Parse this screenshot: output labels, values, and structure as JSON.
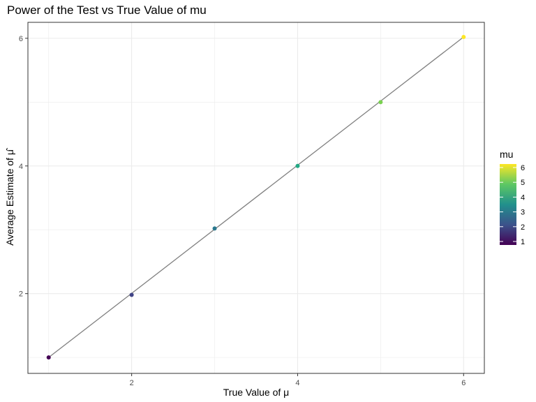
{
  "chart_data": {
    "type": "scatter",
    "title": "Power of the Test vs True Value of mu",
    "xlabel": "True Value of μ",
    "ylabel": "Average Estimate of  μ̂",
    "xlim": [
      0.75,
      6.25
    ],
    "ylim": [
      0.75,
      6.25
    ],
    "x_ticks": [
      2,
      4,
      6
    ],
    "y_ticks": [
      2,
      4,
      6
    ],
    "grid": true,
    "points": [
      {
        "x": 1,
        "y": 1.0,
        "mu": 1
      },
      {
        "x": 2,
        "y": 1.98,
        "mu": 2
      },
      {
        "x": 3,
        "y": 3.02,
        "mu": 3
      },
      {
        "x": 4,
        "y": 4.0,
        "mu": 4
      },
      {
        "x": 5,
        "y": 5.0,
        "mu": 5
      },
      {
        "x": 6,
        "y": 6.02,
        "mu": 6
      }
    ],
    "line": {
      "x": [
        1,
        6
      ],
      "y": [
        1.0,
        6.02
      ],
      "color": "#808080"
    },
    "legend": {
      "title": "mu",
      "placement": "right",
      "labels": [
        "6",
        "5",
        "4",
        "3",
        "2",
        "1"
      ],
      "range": [
        1,
        6
      ],
      "colormap": "viridis",
      "colors": [
        "#440154",
        "#3B528B",
        "#21908C",
        "#5DC863",
        "#FDE725"
      ]
    },
    "colors": {
      "panel_border": "#333333",
      "grid": "#EBEBEB",
      "point": [
        "#440154",
        "#414487",
        "#2A788E",
        "#22A884",
        "#7AD151",
        "#FDE725"
      ]
    }
  }
}
